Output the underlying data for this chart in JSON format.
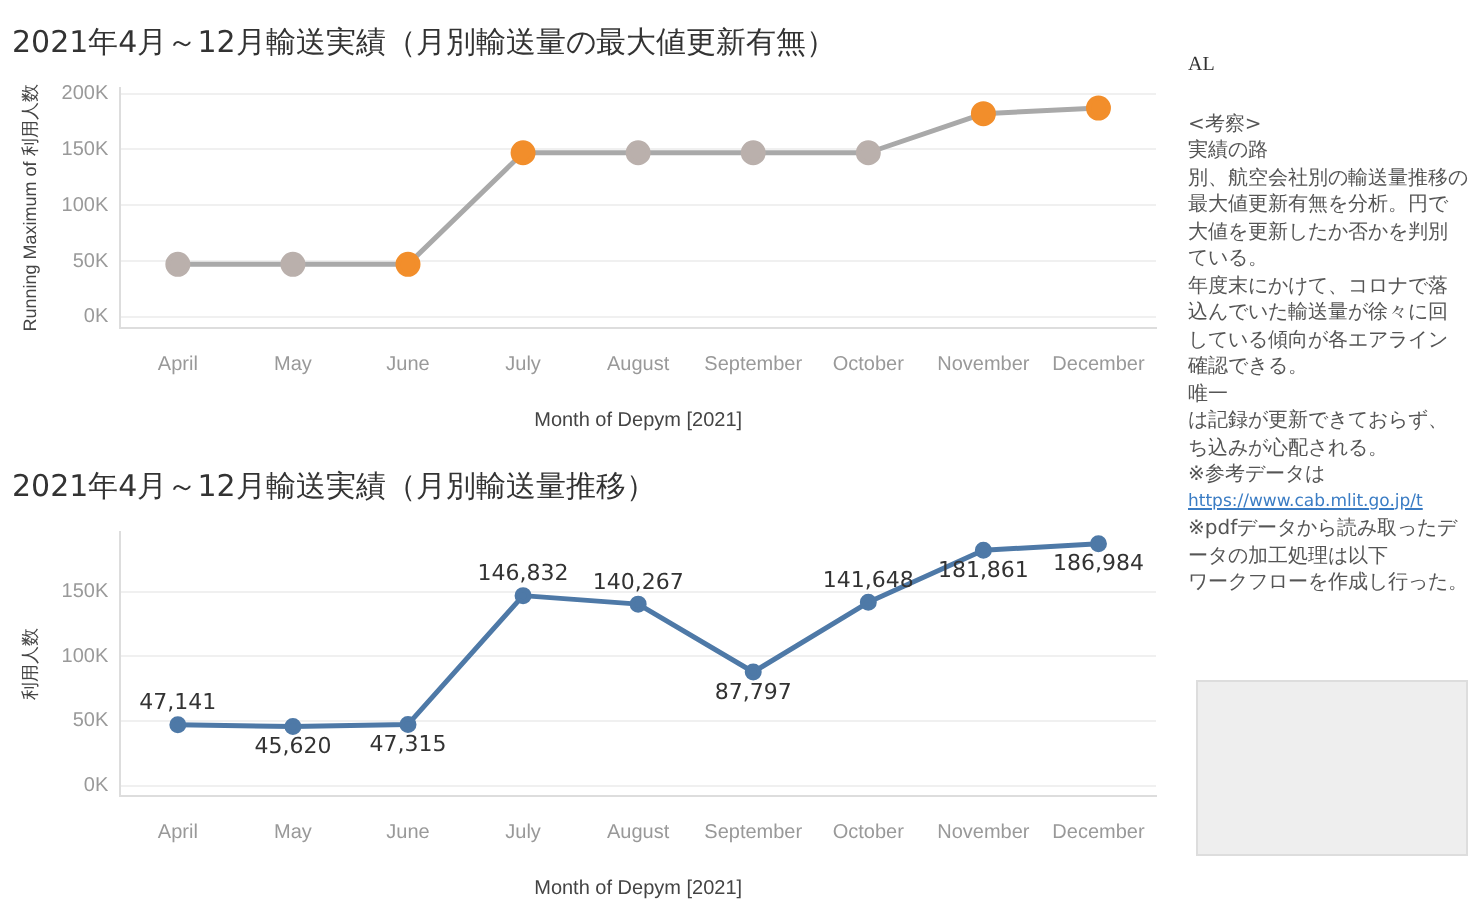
{
  "chart_data": [
    {
      "type": "line",
      "title": "2021年4月～12月輸送実績（月別輸送量の最大値更新有無）",
      "xlabel": "Month of Depym [2021]",
      "ylabel": "Running Maximum of 利用人数",
      "categories": [
        "April",
        "May",
        "June",
        "July",
        "August",
        "September",
        "October",
        "November",
        "December"
      ],
      "values": [
        47000,
        47000,
        47000,
        147000,
        147000,
        147000,
        147000,
        182000,
        187000
      ],
      "color": "#a9a9a9",
      "colors": [
        "#bab0ac",
        "#bab0ac",
        "#f28e2b",
        "#f28e2b",
        "#bab0ac",
        "#bab0ac",
        "#bab0ac",
        "#f28e2b",
        "#f28e2b"
      ],
      "ylim": [
        -10000,
        205000
      ],
      "yticks": [
        {
          "value": 0,
          "label": "0K"
        },
        {
          "value": 50000,
          "label": "50K"
        },
        {
          "value": 100000,
          "label": "100K"
        },
        {
          "value": 150000,
          "label": "150K"
        },
        {
          "value": 200000,
          "label": "200K"
        }
      ],
      "grid": "y",
      "legend": false,
      "marker": "circle",
      "line_style": "solid"
    },
    {
      "type": "line",
      "title": "2021年4月～12月輸送実績（月別輸送量推移）",
      "xlabel": "Month of Depym [2021]",
      "ylabel": "利用人数",
      "categories": [
        "April",
        "May",
        "June",
        "July",
        "August",
        "September",
        "October",
        "November",
        "December"
      ],
      "values": [
        47141,
        45620,
        47315,
        146832,
        140267,
        87797,
        141648,
        181861,
        186984
      ],
      "color": "#4e79a7",
      "ylim": [
        -8000,
        196000
      ],
      "yticks": [
        {
          "value": 0,
          "label": "0K"
        },
        {
          "value": 50000,
          "label": "50K"
        },
        {
          "value": 100000,
          "label": "100K"
        },
        {
          "value": 150000,
          "label": "150K"
        }
      ],
      "grid": "y",
      "legend": false,
      "marker": "circle",
      "line_style": "solid",
      "value_labels": [
        "47,141",
        "45,620",
        "47,315",
        "146,832",
        "140,267",
        "87,797",
        "141,648",
        "181,861",
        "186,984"
      ],
      "annotations": [
        "AL",
        "<考察>",
        "実績の路",
        "別、航空会社別の輸送量推移の",
        "最大値更新有無を分析。円で",
        "大値を更新したか否かを判別",
        "ている。",
        "年度末にかけて、コロナで落",
        "込んでいた輸送量が徐々に回",
        "している傾向が各エアライン",
        "確認できる。",
        "唯一",
        "は記録が更新できておらず、",
        "ち込みが心配される。",
        "※参考データは",
        "https://www.cab.mlit.go.jp/t",
        "※pdfデータから読み取ったデ",
        "ータの加工処理は以下",
        "ワークフローを作成し行った。"
      ]
    }
  ]
}
